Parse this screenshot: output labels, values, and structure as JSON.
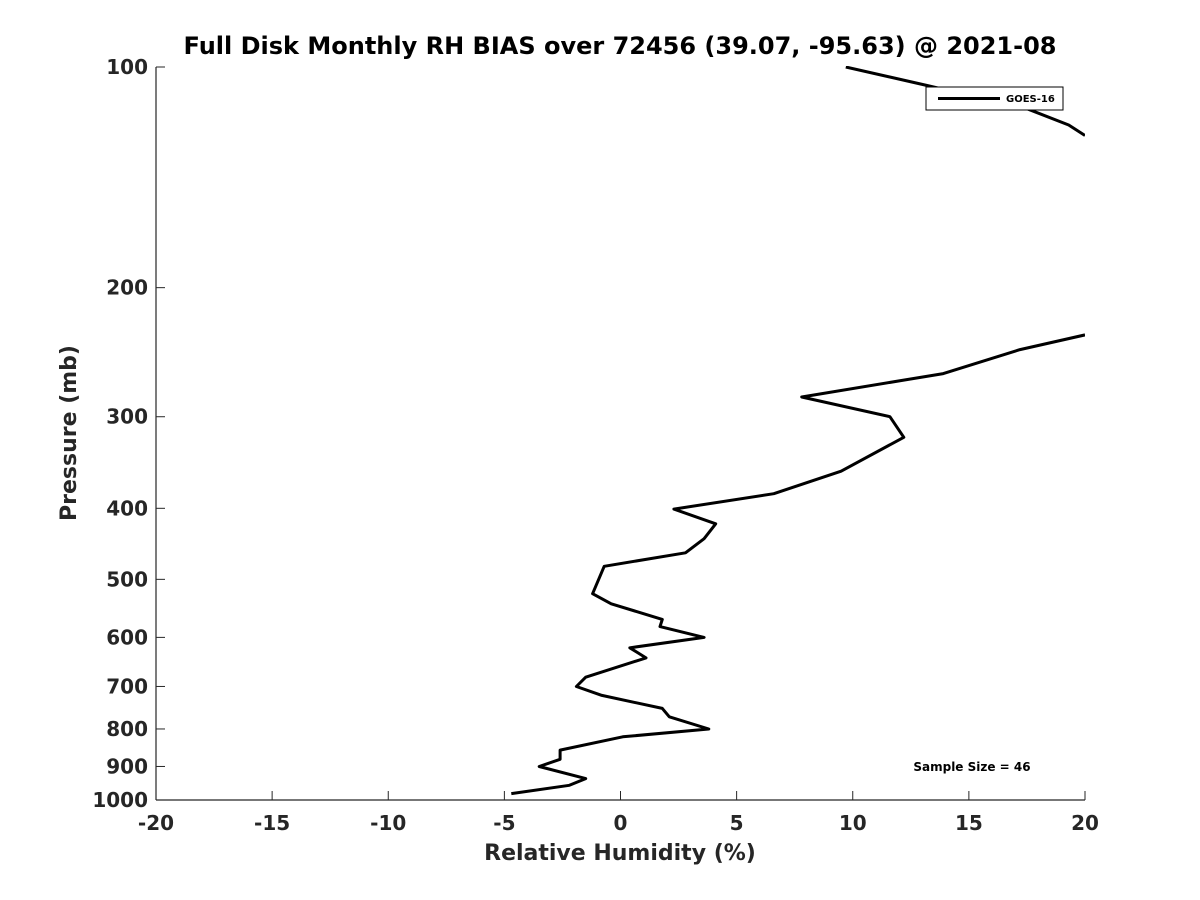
{
  "chart_data": {
    "type": "line",
    "title": "Full Disk Monthly RH BIAS over 72456 (39.07, -95.63) @ 2021-08",
    "xlabel": "Relative Humidity (%)",
    "ylabel": "Pressure (mb)",
    "xlim": [
      -20,
      20
    ],
    "ylim": [
      1000,
      100
    ],
    "yscale": "log",
    "y_reversed": true,
    "xticks": [
      "-20",
      "-15",
      "-10",
      "-5",
      "0",
      "5",
      "10",
      "15",
      "20"
    ],
    "yticks": [
      "100",
      "200",
      "300",
      "400",
      "500",
      "600",
      "700",
      "800",
      "900",
      "1000"
    ],
    "grid": false,
    "legend_position": "top-right",
    "annotation": "Sample Size = 46",
    "series": [
      {
        "name": "GOES-16",
        "color": "#000000",
        "segments": [
          [
            {
              "x": 9.7,
              "y": 100
            },
            {
              "x": 13.2,
              "y": 106
            },
            {
              "x": 17.5,
              "y": 114
            },
            {
              "x": 19.3,
              "y": 120
            },
            {
              "x": 20.0,
              "y": 124
            }
          ],
          [
            {
              "x": 20.0,
              "y": 232
            },
            {
              "x": 17.2,
              "y": 243
            },
            {
              "x": 13.9,
              "y": 262
            },
            {
              "x": 7.8,
              "y": 282
            },
            {
              "x": 11.6,
              "y": 300
            },
            {
              "x": 12.2,
              "y": 320
            },
            {
              "x": 9.5,
              "y": 356
            },
            {
              "x": 6.6,
              "y": 382
            },
            {
              "x": 2.3,
              "y": 401
            },
            {
              "x": 4.1,
              "y": 420
            },
            {
              "x": 3.6,
              "y": 440
            },
            {
              "x": 2.8,
              "y": 460
            },
            {
              "x": -0.7,
              "y": 480
            },
            {
              "x": -1.2,
              "y": 523
            },
            {
              "x": -0.4,
              "y": 540
            },
            {
              "x": 1.8,
              "y": 567
            },
            {
              "x": 1.7,
              "y": 580
            },
            {
              "x": 3.6,
              "y": 600
            },
            {
              "x": 0.4,
              "y": 620
            },
            {
              "x": 1.1,
              "y": 640
            },
            {
              "x": -1.5,
              "y": 680
            },
            {
              "x": -1.9,
              "y": 700
            },
            {
              "x": -0.8,
              "y": 720
            },
            {
              "x": 1.8,
              "y": 750
            },
            {
              "x": 2.1,
              "y": 770
            },
            {
              "x": 3.8,
              "y": 800
            },
            {
              "x": 0.1,
              "y": 820
            },
            {
              "x": -2.6,
              "y": 855
            },
            {
              "x": -2.6,
              "y": 880
            },
            {
              "x": -3.5,
              "y": 900
            },
            {
              "x": -1.5,
              "y": 935
            },
            {
              "x": -2.2,
              "y": 955
            },
            {
              "x": -4.7,
              "y": 980
            }
          ]
        ]
      }
    ]
  }
}
